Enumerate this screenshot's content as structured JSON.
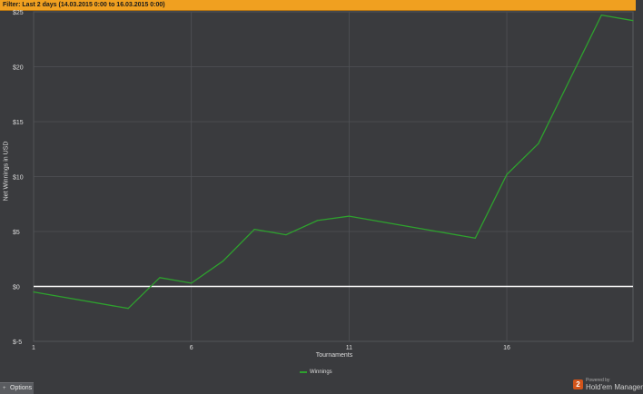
{
  "filter": {
    "label": "Filter:",
    "text": "Last 2 days (14.03.2015 0:00 to 16.03.2015 0:00)"
  },
  "chart_data": {
    "type": "line",
    "title": "",
    "xlabel": "Tournaments",
    "ylabel": "Net Winnings in USD",
    "xlim": [
      1,
      20
    ],
    "ylim": [
      -5,
      25
    ],
    "x_ticks": [
      1,
      6,
      11,
      16
    ],
    "x_tick_labels": [
      "1",
      "6",
      "11",
      "16"
    ],
    "y_ticks": [
      -5,
      0,
      5,
      10,
      15,
      20,
      25
    ],
    "y_tick_labels": [
      "$-5",
      "$0",
      "$5",
      "$10",
      "$15",
      "$20",
      "$25"
    ],
    "grid": true,
    "legend_position": "bottom-center",
    "series": [
      {
        "name": "Winnings",
        "color": "#2ea12e",
        "x": [
          1,
          4,
          5,
          6,
          7,
          8,
          9,
          10,
          11,
          15,
          16,
          17,
          19,
          20
        ],
        "y": [
          -0.5,
          -2.0,
          0.8,
          0.3,
          2.3,
          5.2,
          4.7,
          6.0,
          6.4,
          4.4,
          10.2,
          13.0,
          24.7,
          24.2
        ]
      }
    ],
    "zero_line_color": "#ffffff"
  },
  "footer": {
    "options_label": "Options",
    "options_icon": "plus-icon"
  },
  "brand": {
    "powered": "Powered by",
    "name": "Hold'em Manager",
    "logo_text": "2"
  },
  "colors": {
    "filter_bg": "#f0a020",
    "plot_bg": "#3a3b3e",
    "grid": "#55575b",
    "line": "#2ea12e"
  }
}
